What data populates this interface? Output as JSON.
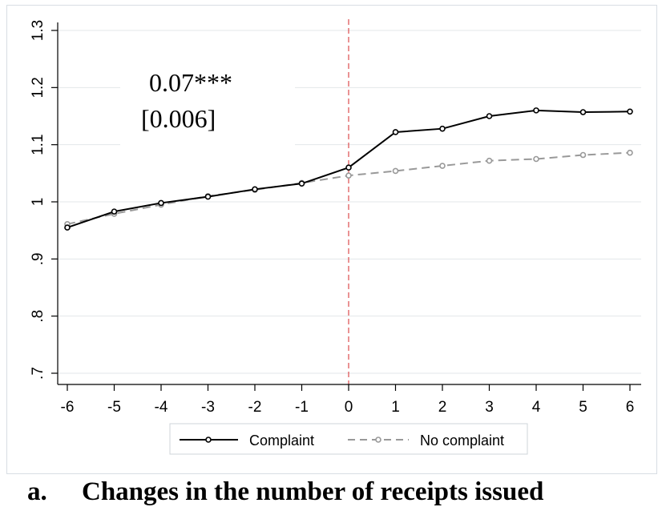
{
  "chart_data": {
    "type": "line",
    "x": [
      -6,
      -5,
      -4,
      -3,
      -2,
      -1,
      0,
      1,
      2,
      3,
      4,
      5,
      6
    ],
    "series": [
      {
        "name": "Complaint",
        "color": "#000000",
        "style": "solid",
        "values": [
          0.955,
          0.983,
          0.998,
          1.009,
          1.022,
          1.032,
          1.06,
          1.122,
          1.128,
          1.15,
          1.16,
          1.157,
          1.158
        ]
      },
      {
        "name": "No complaint",
        "color": "#999999",
        "style": "dashed",
        "values": [
          0.961,
          0.979,
          0.995,
          1.01,
          1.021,
          1.033,
          1.046,
          1.054,
          1.063,
          1.072,
          1.075,
          1.082,
          1.086
        ]
      }
    ],
    "xlim": [
      -6,
      6
    ],
    "ylim": [
      0.7,
      1.3
    ],
    "xticks": [
      "-6",
      "-5",
      "-4",
      "-3",
      "-2",
      "-1",
      "0",
      "1",
      "2",
      "3",
      "4",
      "5",
      "6"
    ],
    "yticks": [
      {
        "value": 0.7,
        "label": ".7"
      },
      {
        "value": 0.8,
        "label": ".8"
      },
      {
        "value": 0.9,
        "label": ".9"
      },
      {
        "value": 1.0,
        "label": "1"
      },
      {
        "value": 1.1,
        "label": "1.1"
      },
      {
        "value": 1.2,
        "label": "1.2"
      },
      {
        "value": 1.3,
        "label": "1.3"
      }
    ],
    "vline": {
      "x": 0,
      "color": "#d62728",
      "style": "dashed"
    },
    "grid": true,
    "legend": "bottom",
    "annotation": {
      "estimate": "0.07***",
      "se": "[0.006]"
    },
    "xlabel": "",
    "ylabel": ""
  },
  "caption": {
    "prefix": "a.",
    "title": "Changes in the number of receipts issued"
  }
}
